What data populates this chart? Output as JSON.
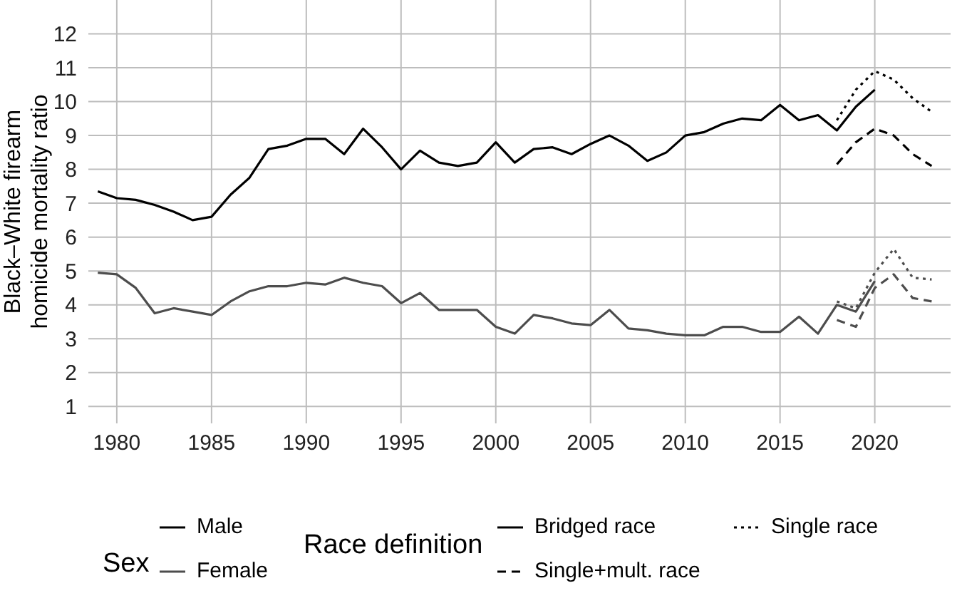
{
  "chart_data": {
    "type": "line",
    "ylabel": "Black–White firearm homicide mortality ratio",
    "legend_title": "Sex",
    "legend": "bottom",
    "grid": true,
    "marker": "none",
    "xlim": [
      1978.5,
      2024
    ],
    "xticks": [
      1980,
      1985,
      1990,
      1995,
      2000,
      2005,
      2010,
      2015,
      2020
    ],
    "ylim": [
      0.5,
      13
    ],
    "yticks": [
      1,
      2,
      3,
      4,
      5,
      6,
      7,
      8,
      9,
      10,
      11,
      12
    ],
    "annotations": [
      "Race definition",
      "Bridged race",
      "Single+mult. race",
      "Single race"
    ],
    "series": [
      {
        "name": "Male",
        "color": "#000000",
        "line_style": "solid",
        "x": [
          1979,
          1980,
          1981,
          1982,
          1983,
          1984,
          1985,
          1986,
          1987,
          1988,
          1989,
          1990,
          1991,
          1992,
          1993,
          1994,
          1995,
          1996,
          1997,
          1998,
          1999,
          2000,
          2001,
          2002,
          2003,
          2004,
          2005,
          2006,
          2007,
          2008,
          2009,
          2010,
          2011,
          2012,
          2013,
          2014,
          2015,
          2016,
          2017,
          2018,
          2019,
          2020
        ],
        "values": [
          7.35,
          7.15,
          7.1,
          6.95,
          6.75,
          6.5,
          6.6,
          7.25,
          7.75,
          8.6,
          8.7,
          8.9,
          8.9,
          8.45,
          9.2,
          8.65,
          8.0,
          8.55,
          8.2,
          8.1,
          8.2,
          8.8,
          8.2,
          8.6,
          8.65,
          8.45,
          8.75,
          9.0,
          8.7,
          8.25,
          8.5,
          9.0,
          9.1,
          9.35,
          9.5,
          9.45,
          9.9,
          9.45,
          9.6,
          9.15,
          9.85,
          10.35
        ]
      },
      {
        "color": "#000000",
        "line_style": "dashed",
        "x": [
          2018,
          2019,
          2020,
          2021,
          2022,
          2023
        ],
        "values": [
          8.15,
          8.8,
          9.2,
          9.0,
          8.45,
          8.1
        ]
      },
      {
        "color": "#000000",
        "line_style": "dotted",
        "x": [
          2018,
          2019,
          2020,
          2021,
          2022,
          2023
        ],
        "values": [
          9.45,
          10.35,
          10.9,
          10.65,
          10.1,
          9.7
        ]
      },
      {
        "name": "Female",
        "color": "#4d4d4d",
        "line_style": "solid",
        "x": [
          1979,
          1980,
          1981,
          1982,
          1983,
          1984,
          1985,
          1986,
          1987,
          1988,
          1989,
          1990,
          1991,
          1992,
          1993,
          1994,
          1995,
          1996,
          1997,
          1998,
          1999,
          2000,
          2001,
          2002,
          2003,
          2004,
          2005,
          2006,
          2007,
          2008,
          2009,
          2010,
          2011,
          2012,
          2013,
          2014,
          2015,
          2016,
          2017,
          2018,
          2019,
          2020
        ],
        "values": [
          4.95,
          4.9,
          4.5,
          3.75,
          3.9,
          3.8,
          3.7,
          4.1,
          4.4,
          4.55,
          4.55,
          4.65,
          4.6,
          4.8,
          4.65,
          4.55,
          4.05,
          4.35,
          3.85,
          3.85,
          3.85,
          3.35,
          3.15,
          3.7,
          3.6,
          3.45,
          3.4,
          3.85,
          3.3,
          3.25,
          3.15,
          3.1,
          3.1,
          3.35,
          3.35,
          3.2,
          3.2,
          3.65,
          3.15,
          4.0,
          3.8,
          4.7
        ]
      },
      {
        "color": "#4d4d4d",
        "line_style": "dashed",
        "x": [
          2018,
          2019,
          2020,
          2021,
          2022,
          2023
        ],
        "values": [
          3.55,
          3.35,
          4.5,
          4.9,
          4.2,
          4.1
        ]
      },
      {
        "color": "#4d4d4d",
        "line_style": "dotted",
        "x": [
          2018,
          2019,
          2020,
          2021,
          2022,
          2023
        ],
        "values": [
          4.1,
          3.9,
          4.95,
          5.65,
          4.8,
          4.75
        ]
      }
    ]
  }
}
